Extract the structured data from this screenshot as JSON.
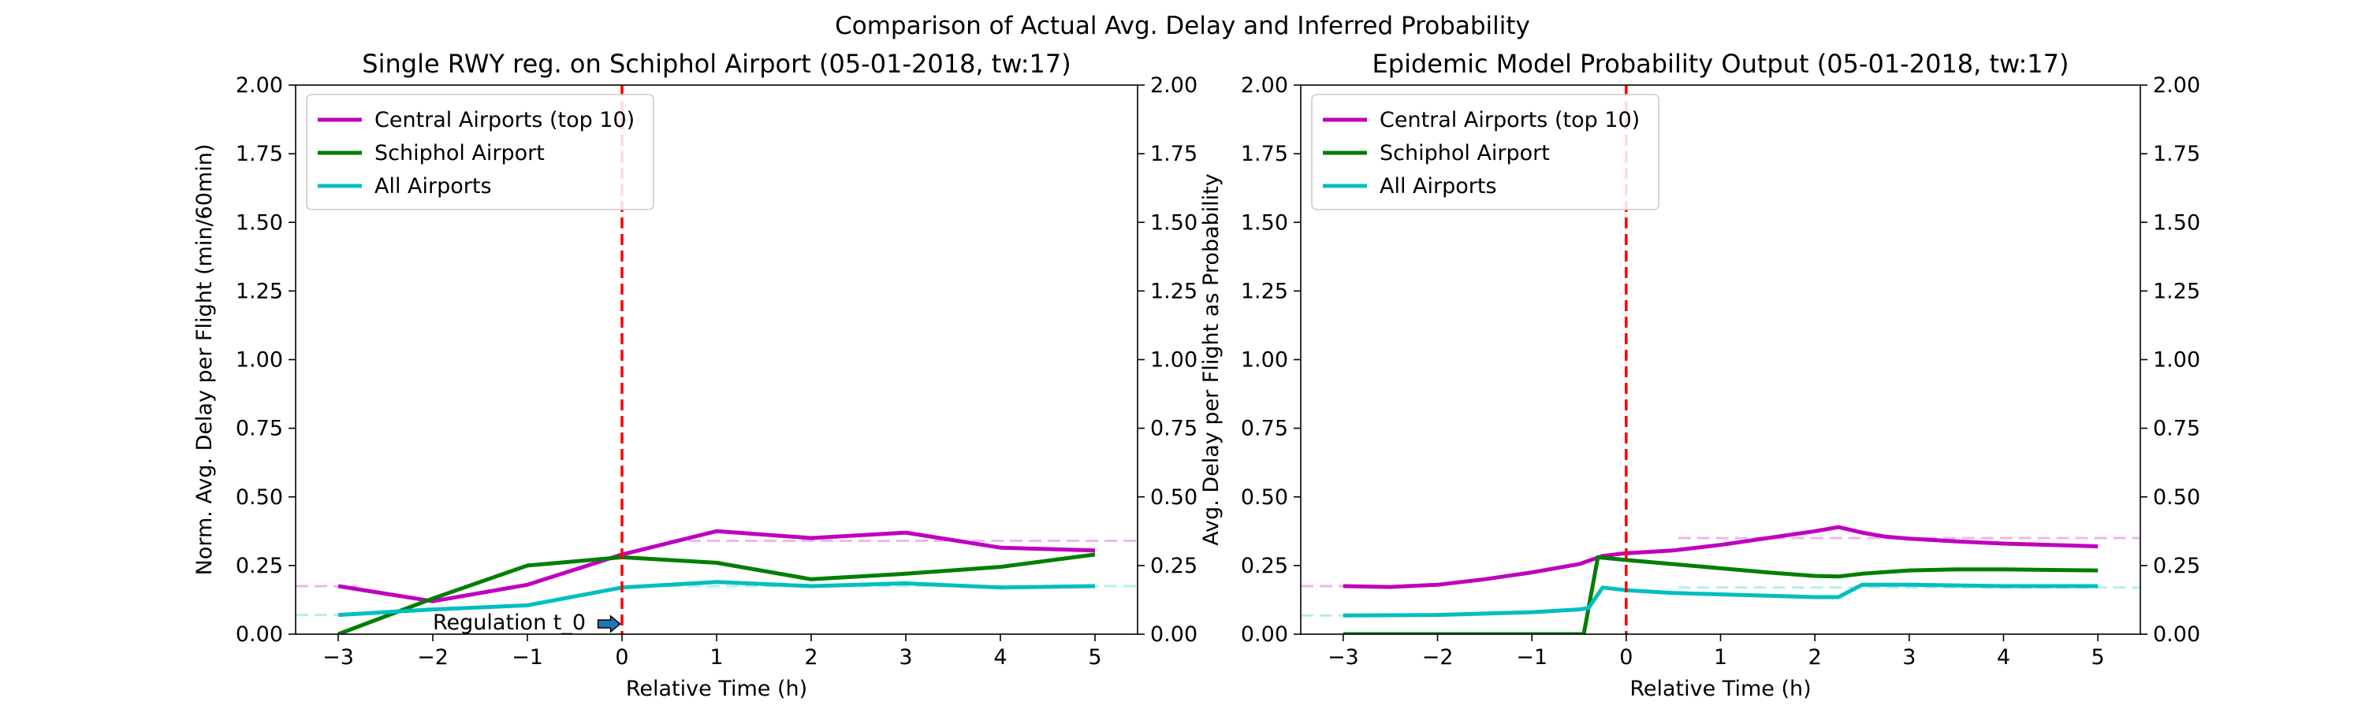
{
  "figure": {
    "suptitle": "Comparison of Actual Avg. Delay and Inferred Probability"
  },
  "colors": {
    "central": "#bf00bf",
    "schiphol": "#007f00",
    "all": "#00bfbf",
    "regulation_line": "#ff0000",
    "arrow_fill": "#1f77b4"
  },
  "chart_data": [
    {
      "type": "line",
      "title": "Single RWY reg. on Schiphol Airport (05-01-2018, tw:17)",
      "xlabel": "Relative Time (h)",
      "ylabel": "Norm. Avg. Delay per Flight (min/60min)",
      "xlim": [
        -3.45,
        5.45
      ],
      "ylim": [
        0,
        2.0
      ],
      "xticks": [
        -3,
        -2,
        -1,
        0,
        1,
        2,
        3,
        4,
        5
      ],
      "xtick_labels": [
        "−3",
        "−2",
        "−1",
        "0",
        "1",
        "2",
        "3",
        "4",
        "5"
      ],
      "yticks": [
        0,
        0.25,
        0.5,
        0.75,
        1.0,
        1.25,
        1.5,
        1.75,
        2.0
      ],
      "ytick_labels": [
        "0.00",
        "0.25",
        "0.50",
        "0.75",
        "1.00",
        "1.25",
        "1.50",
        "1.75",
        "2.00"
      ],
      "legend_position": "upper-left",
      "vline_x": 0,
      "annotation": {
        "text": "Regulation t_0",
        "x": -2.0,
        "y": 0.02,
        "arrow_to_x": -0.02,
        "arrow_to_y": 0.02
      },
      "series": [
        {
          "name": "Central Airports (top 10)",
          "color_key": "central",
          "x": [
            -3,
            -2,
            -1,
            0,
            1,
            2,
            3,
            4,
            5
          ],
          "values": [
            0.175,
            0.12,
            0.18,
            0.29,
            0.375,
            0.35,
            0.37,
            0.315,
            0.305
          ]
        },
        {
          "name": "Schiphol Airport",
          "color_key": "schiphol",
          "x": [
            -3,
            -2,
            -1,
            0,
            1,
            2,
            3,
            4,
            5
          ],
          "values": [
            0.0,
            0.13,
            0.25,
            0.28,
            0.26,
            0.2,
            0.22,
            0.245,
            0.29
          ]
        },
        {
          "name": "All Airports",
          "color_key": "all",
          "x": [
            -3,
            -2,
            -1,
            0,
            1,
            2,
            3,
            4,
            5
          ],
          "values": [
            0.07,
            0.09,
            0.105,
            0.17,
            0.19,
            0.175,
            0.185,
            0.17,
            0.175
          ]
        }
      ],
      "dashed_baselines": [
        {
          "color_key": "central",
          "segments": [
            [
              -3.45,
              -2.8,
              0.175
            ],
            [
              0.5,
              5.45,
              0.34
            ]
          ]
        },
        {
          "color_key": "all",
          "segments": [
            [
              -3.45,
              -2.8,
              0.07
            ],
            [
              0.5,
              5.45,
              0.175
            ]
          ]
        }
      ]
    },
    {
      "type": "line",
      "title": "Epidemic Model Probability Output (05-01-2018, tw:17)",
      "xlabel": "Relative Time (h)",
      "ylabel": "Avg. Delay per Flight as Probability",
      "xlim": [
        -3.45,
        5.45
      ],
      "ylim": [
        0,
        2.0
      ],
      "xticks": [
        -3,
        -2,
        -1,
        0,
        1,
        2,
        3,
        4,
        5
      ],
      "xtick_labels": [
        "−3",
        "−2",
        "−1",
        "0",
        "1",
        "2",
        "3",
        "4",
        "5"
      ],
      "yticks": [
        0,
        0.25,
        0.5,
        0.75,
        1.0,
        1.25,
        1.5,
        1.75,
        2.0
      ],
      "ytick_labels": [
        "0.00",
        "0.25",
        "0.50",
        "0.75",
        "1.00",
        "1.25",
        "1.50",
        "1.75",
        "2.00"
      ],
      "legend_position": "upper-left",
      "vline_x": 0,
      "series": [
        {
          "name": "Central Airports (top 10)",
          "color_key": "central",
          "x": [
            -3,
            -2.5,
            -2,
            -1.5,
            -1,
            -0.5,
            -0.25,
            0,
            0.5,
            1,
            1.5,
            2,
            2.25,
            2.5,
            2.75,
            3,
            3.5,
            4,
            4.5,
            5
          ],
          "values": [
            0.175,
            0.172,
            0.18,
            0.2,
            0.225,
            0.255,
            0.285,
            0.295,
            0.305,
            0.325,
            0.35,
            0.375,
            0.39,
            0.37,
            0.355,
            0.348,
            0.338,
            0.33,
            0.325,
            0.32
          ]
        },
        {
          "name": "Schiphol Airport",
          "color_key": "schiphol",
          "x": [
            -3,
            -2,
            -1,
            -0.5,
            -0.45,
            -0.3,
            0,
            0.5,
            1,
            1.5,
            2,
            2.25,
            2.5,
            3,
            3.5,
            4,
            4.5,
            5
          ],
          "values": [
            0.0,
            0.0,
            0.0,
            0.0,
            0.0,
            0.28,
            0.27,
            0.255,
            0.24,
            0.225,
            0.212,
            0.21,
            0.22,
            0.232,
            0.236,
            0.236,
            0.234,
            0.232
          ]
        },
        {
          "name": "All Airports",
          "color_key": "all",
          "x": [
            -3,
            -2,
            -1,
            -0.5,
            -0.4,
            -0.25,
            0,
            0.5,
            1,
            1.5,
            2,
            2.25,
            2.5,
            3,
            4,
            5
          ],
          "values": [
            0.068,
            0.07,
            0.08,
            0.09,
            0.095,
            0.17,
            0.16,
            0.15,
            0.145,
            0.14,
            0.135,
            0.135,
            0.18,
            0.18,
            0.175,
            0.175
          ]
        }
      ],
      "dashed_baselines": [
        {
          "color_key": "central",
          "segments": [
            [
              -3.45,
              -2.8,
              0.175
            ],
            [
              0.55,
              5.45,
              0.35
            ]
          ]
        },
        {
          "color_key": "all",
          "segments": [
            [
              -3.45,
              -2.8,
              0.068
            ],
            [
              0.55,
              5.45,
              0.17
            ]
          ]
        }
      ]
    }
  ]
}
